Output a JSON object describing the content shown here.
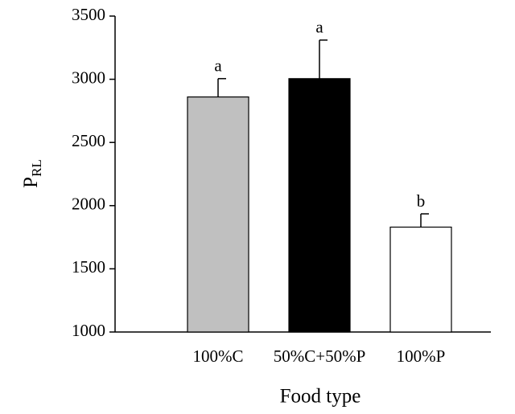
{
  "chart_data": {
    "type": "bar",
    "xlabel": "Food type",
    "ylabel": "P",
    "ylabel_subscript": "RL",
    "categories": [
      "100%C",
      "50%C+50%P",
      "100%P"
    ],
    "values": [
      2860,
      3005,
      1830
    ],
    "errors": [
      145,
      305,
      105
    ],
    "annotations": [
      "a",
      "a",
      "b"
    ],
    "colors": [
      "#c0c0c0",
      "#000000",
      "#ffffff"
    ],
    "ylim": [
      1000,
      3500
    ],
    "yticks": [
      1000,
      1500,
      2000,
      2500,
      3000,
      3500
    ],
    "grid": false
  }
}
